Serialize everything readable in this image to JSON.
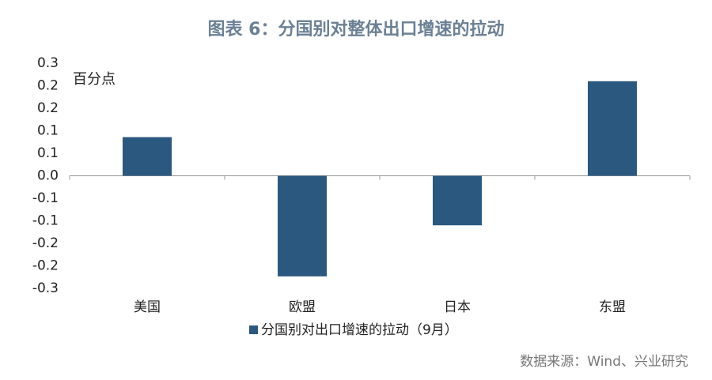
{
  "chart_data": {
    "type": "bar",
    "title": "图表 6：分国别对整体出口增速的拉动",
    "y_label": "百分点",
    "categories": [
      "美国",
      "欧盟",
      "日本",
      "东盟"
    ],
    "series": [
      {
        "name": "分国别对出口增速的拉动（9月）",
        "color": "#2b587e",
        "values": [
          0.103,
          -0.268,
          -0.132,
          0.252
        ]
      }
    ],
    "ylim": [
      -0.3,
      0.3
    ],
    "yticks": [
      0.3,
      {
        "value": 0.24,
        "label": "0.2"
      },
      {
        "value": 0.18,
        "label": "0.2"
      },
      {
        "value": 0.12,
        "label": "0.1"
      },
      {
        "value": 0.06,
        "label": "0.1"
      },
      {
        "value": 0,
        "label": "0.0"
      },
      {
        "value": -0.06,
        "label": "-0.1"
      },
      {
        "value": -0.12,
        "label": "-0.1"
      },
      {
        "value": -0.18,
        "label": "-0.2"
      },
      {
        "value": -0.24,
        "label": "-0.2"
      },
      -0.3
    ],
    "grid": false,
    "source": "数据来源：Wind、兴业研究"
  }
}
